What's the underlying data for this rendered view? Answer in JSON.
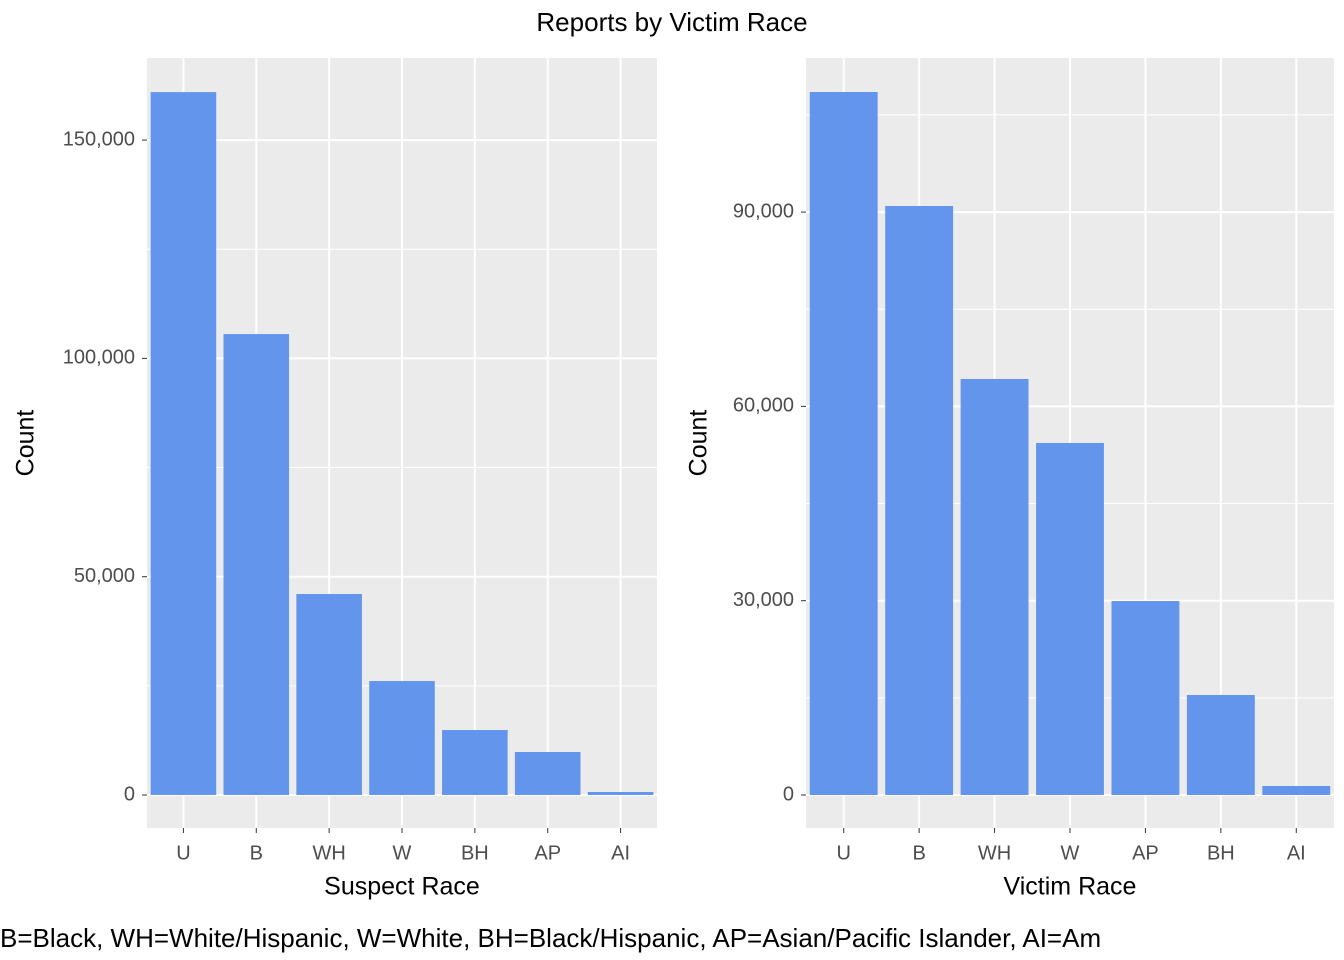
{
  "title": "Reports by Victim Race",
  "caption": "B=Black, WH=White/Hispanic, W=White, BH=Black/Hispanic, AP=Asian/Pacific Islander, AI=Am",
  "chart_data": [
    {
      "type": "bar",
      "xlabel": "Suspect Race",
      "ylabel": "Count",
      "categories": [
        "U",
        "B",
        "WH",
        "W",
        "BH",
        "AP",
        "AI"
      ],
      "values": [
        160990,
        105570,
        46030,
        26100,
        14880,
        9850,
        690
      ],
      "color": "#6495ed",
      "ylim": [
        -7560,
        168800
      ],
      "yticks": [
        0,
        {
          "value": 50000,
          "label": "50,000"
        },
        {
          "value": 100000,
          "label": "100,000"
        },
        {
          "value": 150000,
          "label": "150,000"
        }
      ],
      "minor_yticks": [
        25000,
        75000,
        125000
      ],
      "grid": true
    },
    {
      "type": "bar",
      "xlabel": "Victim Race",
      "ylabel": "Count",
      "categories": [
        "U",
        "B",
        "WH",
        "W",
        "AP",
        "BH",
        "AI"
      ],
      "values": [
        108540,
        90940,
        64230,
        54350,
        29950,
        15440,
        1390
      ],
      "color": "#6495ed",
      "ylim": [
        -5095,
        113790
      ],
      "yticks": [
        0,
        {
          "value": 30000,
          "label": "30,000"
        },
        {
          "value": 60000,
          "label": "60,000"
        },
        {
          "value": 90000,
          "label": "90,000"
        }
      ],
      "minor_yticks": [
        15000,
        45000,
        75000,
        105000
      ],
      "grid": true
    }
  ]
}
